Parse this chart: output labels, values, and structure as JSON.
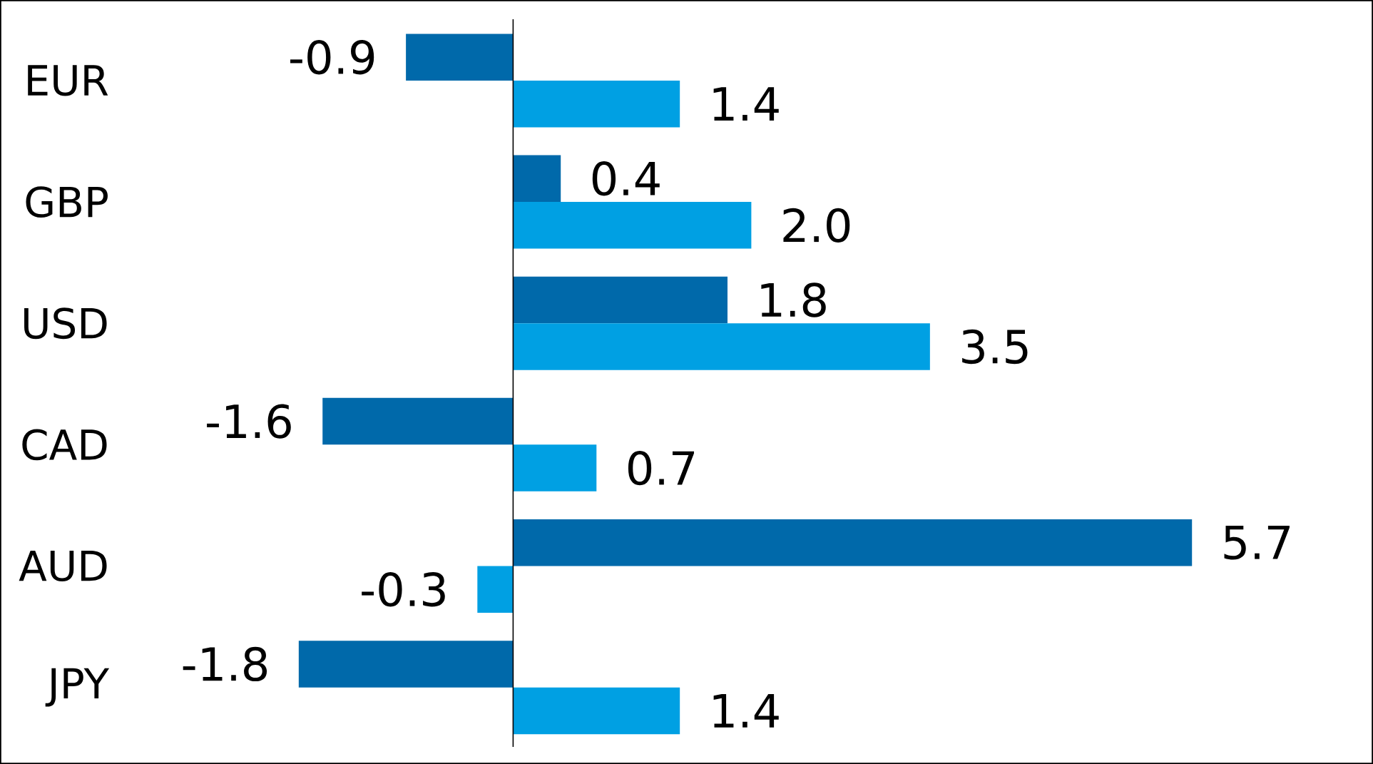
{
  "chart_data": {
    "type": "bar",
    "orientation": "horizontal",
    "categories": [
      "EUR",
      "GBP",
      "USD",
      "CAD",
      "AUD",
      "JPY"
    ],
    "series": [
      {
        "color": "#0069aa",
        "values": [
          -0.9,
          0.4,
          1.8,
          -1.6,
          5.7,
          -1.8
        ],
        "value_labels": [
          "-0.9",
          "0.4",
          "1.8",
          "-1.6",
          "5.7",
          "-1.8"
        ]
      },
      {
        "color": "#00a0e3",
        "values": [
          1.4,
          2.0,
          3.5,
          0.7,
          -0.3,
          1.4
        ],
        "value_labels": [
          "1.4",
          "2.0",
          "3.5",
          "0.7",
          "-0.3",
          "1.4"
        ]
      }
    ]
  }
}
